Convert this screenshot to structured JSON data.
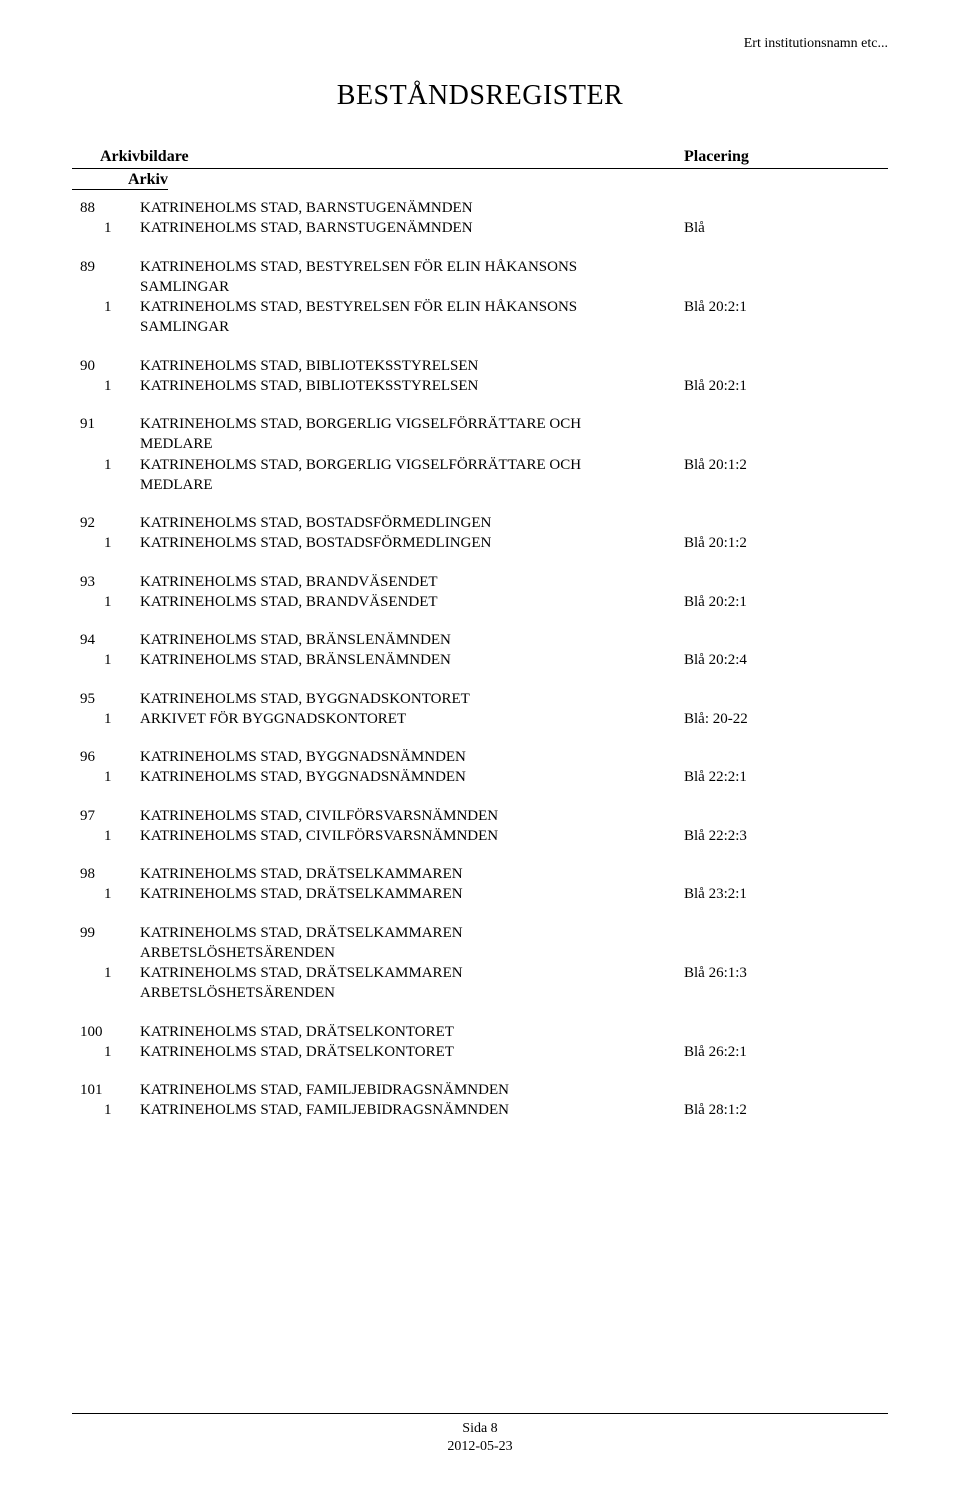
{
  "institution_name": "Ert institutionsnamn etc...",
  "title": "BESTÅNDSREGISTER",
  "header": {
    "left": "Arkivbildare",
    "right": "Placering",
    "arkiv": "Arkiv"
  },
  "entries": [
    {
      "num": "88",
      "heading": "KATRINEHOLMS STAD, BARNSTUGENÄMNDEN",
      "sub": [
        {
          "n": "1",
          "text": "KATRINEHOLMS STAD, BARNSTUGENÄMNDEN",
          "place": "Blå"
        }
      ]
    },
    {
      "num": "89",
      "heading": "KATRINEHOLMS STAD, BESTYRELSEN FÖR ELIN HÅKANSONS SAMLINGAR",
      "sub": [
        {
          "n": "1",
          "text": "KATRINEHOLMS STAD, BESTYRELSEN FÖR ELIN HÅKANSONS SAMLINGAR",
          "place": "Blå 20:2:1"
        }
      ]
    },
    {
      "num": "90",
      "heading": "KATRINEHOLMS STAD, BIBLIOTEKSSTYRELSEN",
      "sub": [
        {
          "n": "1",
          "text": "KATRINEHOLMS STAD, BIBLIOTEKSSTYRELSEN",
          "place": "Blå 20:2:1"
        }
      ]
    },
    {
      "num": "91",
      "heading": "KATRINEHOLMS STAD, BORGERLIG VIGSELFÖRRÄTTARE OCH MEDLARE",
      "sub": [
        {
          "n": "1",
          "text": "KATRINEHOLMS STAD, BORGERLIG VIGSELFÖRRÄTTARE OCH MEDLARE",
          "place": "Blå 20:1:2"
        }
      ]
    },
    {
      "num": "92",
      "heading": "KATRINEHOLMS STAD, BOSTADSFÖRMEDLINGEN",
      "sub": [
        {
          "n": "1",
          "text": "KATRINEHOLMS STAD, BOSTADSFÖRMEDLINGEN",
          "place": "Blå 20:1:2"
        }
      ]
    },
    {
      "num": "93",
      "heading": "KATRINEHOLMS STAD, BRANDVÄSENDET",
      "sub": [
        {
          "n": "1",
          "text": "KATRINEHOLMS STAD, BRANDVÄSENDET",
          "place": "Blå 20:2:1"
        }
      ]
    },
    {
      "num": "94",
      "heading": "KATRINEHOLMS STAD, BRÄNSLENÄMNDEN",
      "sub": [
        {
          "n": "1",
          "text": "KATRINEHOLMS STAD, BRÄNSLENÄMNDEN",
          "place": "Blå 20:2:4"
        }
      ]
    },
    {
      "num": "95",
      "heading": "KATRINEHOLMS STAD, BYGGNADSKONTORET",
      "sub": [
        {
          "n": "1",
          "text": "ARKIVET FÖR BYGGNADSKONTORET",
          "place": "Blå: 20-22"
        }
      ]
    },
    {
      "num": "96",
      "heading": "KATRINEHOLMS STAD, BYGGNADSNÄMNDEN",
      "sub": [
        {
          "n": "1",
          "text": "KATRINEHOLMS STAD, BYGGNADSNÄMNDEN",
          "place": "Blå 22:2:1"
        }
      ]
    },
    {
      "num": "97",
      "heading": "KATRINEHOLMS STAD, CIVILFÖRSVARSNÄMNDEN",
      "sub": [
        {
          "n": "1",
          "text": "KATRINEHOLMS STAD, CIVILFÖRSVARSNÄMNDEN",
          "place": "Blå 22:2:3"
        }
      ]
    },
    {
      "num": "98",
      "heading": "KATRINEHOLMS STAD, DRÄTSELKAMMAREN",
      "sub": [
        {
          "n": "1",
          "text": "KATRINEHOLMS STAD, DRÄTSELKAMMAREN",
          "place": "Blå 23:2:1"
        }
      ]
    },
    {
      "num": "99",
      "heading": "KATRINEHOLMS STAD, DRÄTSELKAMMAREN ARBETSLÖSHETSÄRENDEN",
      "sub": [
        {
          "n": "1",
          "text": "KATRINEHOLMS STAD, DRÄTSELKAMMAREN ARBETSLÖSHETSÄRENDEN",
          "place": "Blå 26:1:3"
        }
      ]
    },
    {
      "num": "100",
      "heading": "KATRINEHOLMS STAD, DRÄTSELKONTORET",
      "sub": [
        {
          "n": "1",
          "text": "KATRINEHOLMS STAD, DRÄTSELKONTORET",
          "place": "Blå 26:2:1"
        }
      ]
    },
    {
      "num": "101",
      "heading": "KATRINEHOLMS STAD, FAMILJEBIDRAGSNÄMNDEN",
      "sub": [
        {
          "n": "1",
          "text": "KATRINEHOLMS STAD, FAMILJEBIDRAGSNÄMNDEN",
          "place": "Blå 28:1:2"
        }
      ]
    }
  ],
  "footer": {
    "page": "Sida 8",
    "date": "2012-05-23"
  }
}
